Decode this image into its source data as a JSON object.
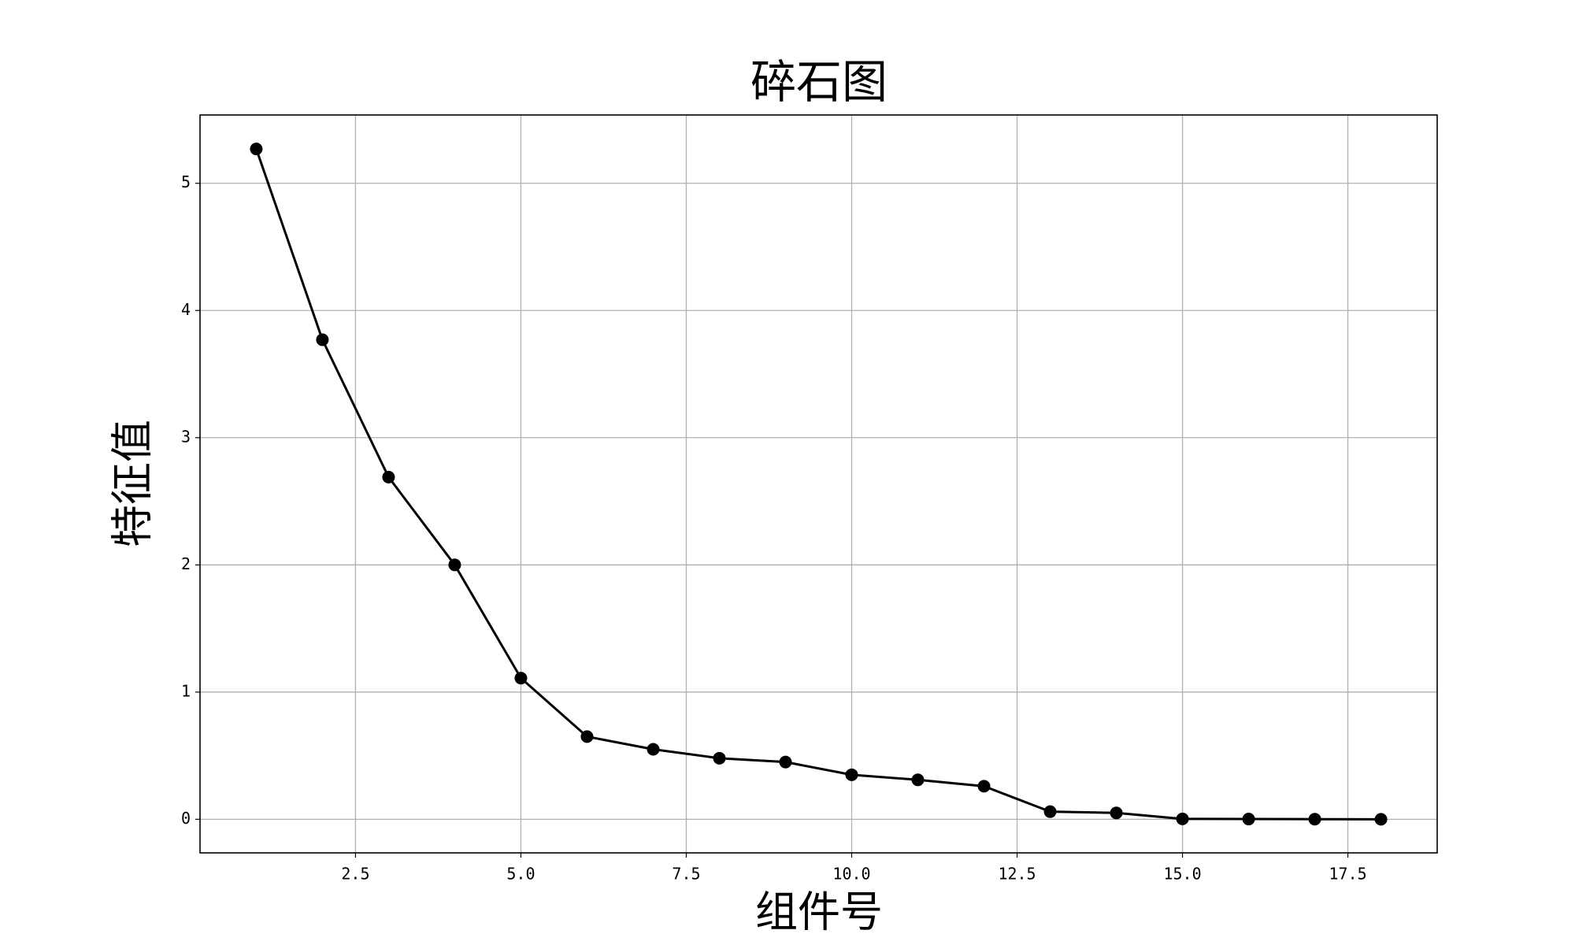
{
  "chart_data": {
    "type": "line",
    "title": "碎石图",
    "x_label": "组件号",
    "y_label": "特征值",
    "x": [
      1,
      2,
      3,
      4,
      5,
      6,
      7,
      8,
      9,
      10,
      11,
      12,
      13,
      14,
      15,
      16,
      17,
      18
    ],
    "series": [
      {
        "color": "#000000",
        "values": [
          5.27,
          3.77,
          2.69,
          2.0,
          1.11,
          0.65,
          0.55,
          0.48,
          0.45,
          0.35,
          0.31,
          0.26,
          0.06,
          0.05,
          0.003,
          0.002,
          0.001,
          0.0
        ]
      }
    ],
    "xlim": [
      0.15,
      18.85
    ],
    "xticks": [
      2.5,
      {
        "value": 5,
        "label": "5.0"
      },
      7.5,
      {
        "value": 10,
        "label": "10.0"
      },
      12.5,
      {
        "value": 15,
        "label": "15.0"
      },
      17.5
    ],
    "ylim": [
      -0.264,
      5.537
    ],
    "yticks": [
      0,
      1,
      2,
      3,
      4,
      5
    ],
    "grid": true,
    "marker": "circle"
  }
}
